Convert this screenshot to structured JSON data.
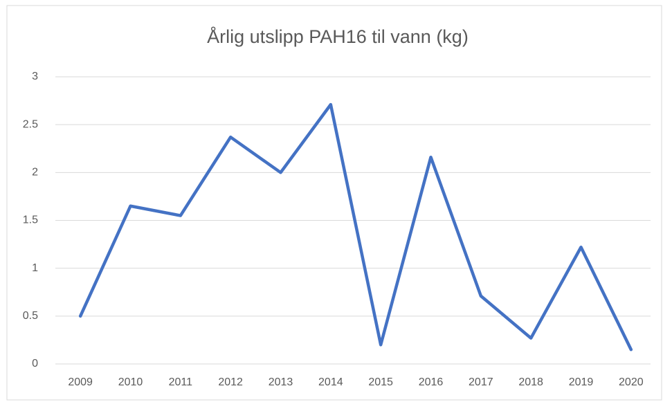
{
  "chart_data": {
    "type": "line",
    "title": "Årlig utslipp PAH16 til vann (kg)",
    "categories": [
      "2009",
      "2010",
      "2011",
      "2012",
      "2013",
      "2014",
      "2015",
      "2016",
      "2017",
      "2018",
      "2019",
      "2020"
    ],
    "values": [
      0.5,
      1.65,
      1.55,
      2.37,
      2.0,
      2.71,
      0.2,
      2.16,
      0.71,
      0.27,
      1.22,
      0.15
    ],
    "color": "#4472c4",
    "ylim": [
      0,
      3
    ],
    "yticks": [
      0,
      0.5,
      1,
      1.5,
      2,
      2.5,
      3
    ],
    "grid": true
  }
}
